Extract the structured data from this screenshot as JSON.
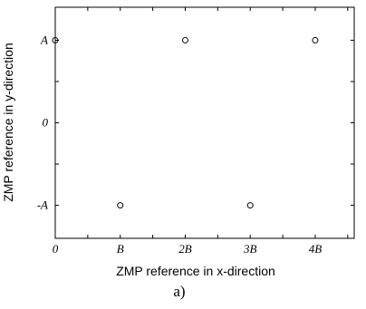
{
  "chart_data": {
    "type": "scatter",
    "xlabel": "ZMP reference in x-direction",
    "ylabel": "ZMP reference in y-direction",
    "caption": "a)",
    "xlim": [
      0,
      4.6
    ],
    "ylim": [
      -1.4,
      1.4
    ],
    "x_ticks_minor": [
      0,
      0.5,
      1,
      1.5,
      2,
      2.5,
      3,
      3.5,
      4,
      4.5
    ],
    "y_ticks_minor": [
      -1,
      -0.5,
      0,
      0.5,
      1
    ],
    "x_tick_labels": [
      {
        "value": 0,
        "label": "0"
      },
      {
        "value": 1,
        "label": "B"
      },
      {
        "value": 2,
        "label": "2B"
      },
      {
        "value": 3,
        "label": "3B"
      },
      {
        "value": 4,
        "label": "4B"
      }
    ],
    "y_tick_labels": [
      {
        "value": 1,
        "label": "A"
      },
      {
        "value": 0,
        "label": "0"
      },
      {
        "value": -1,
        "label": "-A"
      }
    ],
    "points": [
      {
        "x": 0,
        "y": 1
      },
      {
        "x": 1,
        "y": -1
      },
      {
        "x": 2,
        "y": 1
      },
      {
        "x": 3,
        "y": -1
      },
      {
        "x": 4,
        "y": 1
      }
    ],
    "marker": "open-circle",
    "grid": false,
    "colors": {
      "axis": "#000000",
      "marker": "#000000"
    }
  }
}
